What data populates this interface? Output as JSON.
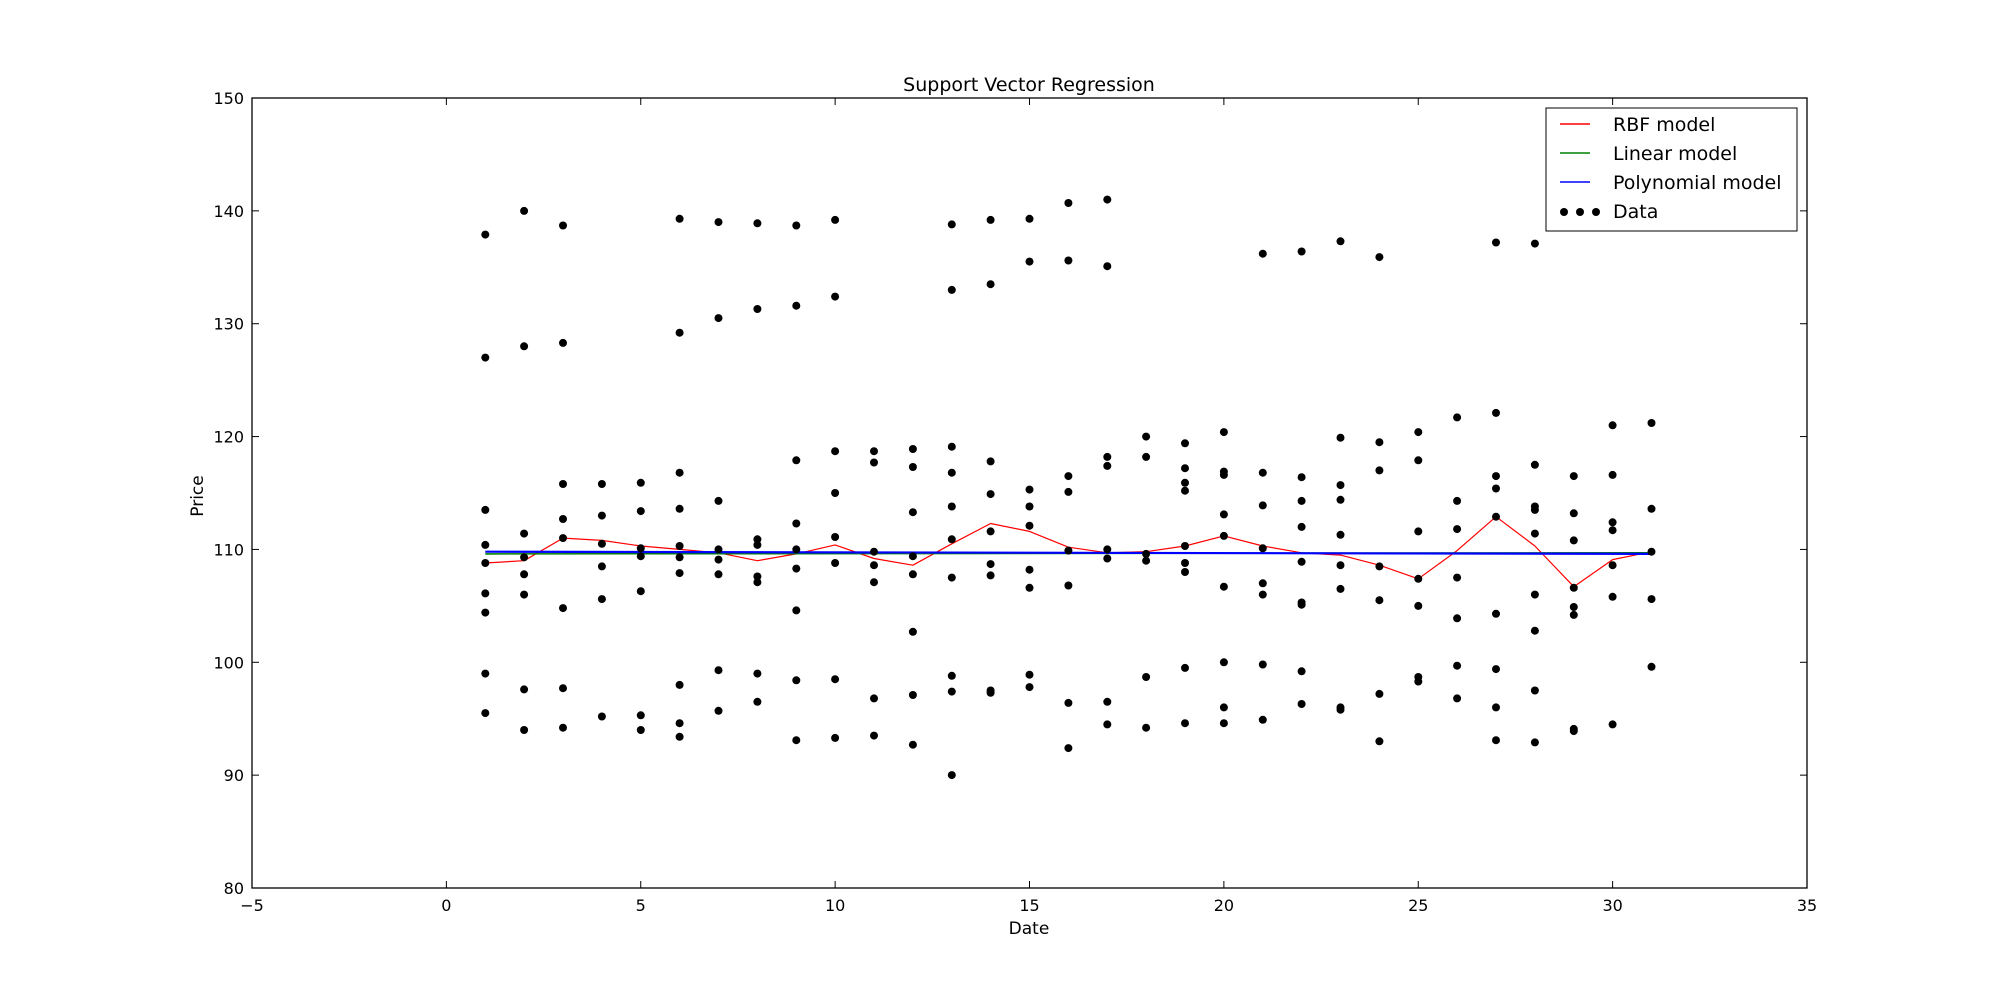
{
  "chart_data": {
    "type": "scatter",
    "title": "Support Vector Regression",
    "xlabel": "Date",
    "ylabel": "Price",
    "xlim": [
      -5,
      35
    ],
    "ylim": [
      80,
      150
    ],
    "xticks": [
      -5,
      0,
      5,
      10,
      15,
      20,
      25,
      30,
      35
    ],
    "yticks": [
      80,
      90,
      100,
      110,
      120,
      130,
      140,
      150
    ],
    "grid": false,
    "legend_position": "top-right",
    "legend": [
      {
        "label": "RBF model",
        "color": "#ff0000",
        "marker": "line"
      },
      {
        "label": "Linear model",
        "color": "#008000",
        "marker": "line"
      },
      {
        "label": "Polynomial model",
        "color": "#0000ff",
        "marker": "line"
      },
      {
        "label": "Data",
        "color": "#000000",
        "marker": "dots"
      }
    ],
    "series": [
      {
        "name": "Data",
        "color": "#000000",
        "points": [
          [
            1,
            137.9
          ],
          [
            1,
            127.0
          ],
          [
            1,
            113.5
          ],
          [
            1,
            110.4
          ],
          [
            1,
            108.8
          ],
          [
            1,
            106.1
          ],
          [
            1,
            104.4
          ],
          [
            1,
            99.0
          ],
          [
            1,
            95.5
          ],
          [
            2,
            140.0
          ],
          [
            2,
            128.0
          ],
          [
            2,
            111.4
          ],
          [
            2,
            109.3
          ],
          [
            2,
            107.8
          ],
          [
            2,
            106.0
          ],
          [
            2,
            97.6
          ],
          [
            2,
            94.0
          ],
          [
            3,
            138.7
          ],
          [
            3,
            128.3
          ],
          [
            3,
            115.8
          ],
          [
            3,
            112.7
          ],
          [
            3,
            111.0
          ],
          [
            3,
            104.8
          ],
          [
            3,
            97.7
          ],
          [
            3,
            94.2
          ],
          [
            4,
            115.8
          ],
          [
            4,
            113.0
          ],
          [
            4,
            110.5
          ],
          [
            4,
            108.5
          ],
          [
            4,
            105.6
          ],
          [
            4,
            95.2
          ],
          [
            5,
            115.9
          ],
          [
            5,
            113.4
          ],
          [
            5,
            110.1
          ],
          [
            5,
            109.4
          ],
          [
            5,
            106.3
          ],
          [
            5,
            95.3
          ],
          [
            5,
            94.0
          ],
          [
            6,
            139.3
          ],
          [
            6,
            129.2
          ],
          [
            6,
            116.8
          ],
          [
            6,
            113.6
          ],
          [
            6,
            110.3
          ],
          [
            6,
            109.3
          ],
          [
            6,
            107.9
          ],
          [
            6,
            98.0
          ],
          [
            6,
            94.6
          ],
          [
            6,
            93.4
          ],
          [
            7,
            139.0
          ],
          [
            7,
            130.5
          ],
          [
            7,
            114.3
          ],
          [
            7,
            110.0
          ],
          [
            7,
            109.1
          ],
          [
            7,
            107.8
          ],
          [
            7,
            99.3
          ],
          [
            7,
            95.7
          ],
          [
            8,
            138.9
          ],
          [
            8,
            131.3
          ],
          [
            8,
            110.9
          ],
          [
            8,
            110.4
          ],
          [
            8,
            107.6
          ],
          [
            8,
            107.1
          ],
          [
            8,
            99.0
          ],
          [
            8,
            96.5
          ],
          [
            9,
            138.7
          ],
          [
            9,
            131.6
          ],
          [
            9,
            117.9
          ],
          [
            9,
            112.3
          ],
          [
            9,
            110.0
          ],
          [
            9,
            108.3
          ],
          [
            9,
            104.6
          ],
          [
            9,
            98.4
          ],
          [
            9,
            93.1
          ],
          [
            10,
            139.2
          ],
          [
            10,
            132.4
          ],
          [
            10,
            118.7
          ],
          [
            10,
            115.0
          ],
          [
            10,
            111.1
          ],
          [
            10,
            108.8
          ],
          [
            10,
            98.5
          ],
          [
            10,
            93.3
          ],
          [
            11,
            118.7
          ],
          [
            11,
            117.7
          ],
          [
            11,
            109.8
          ],
          [
            11,
            108.6
          ],
          [
            11,
            107.1
          ],
          [
            11,
            96.8
          ],
          [
            11,
            93.5
          ],
          [
            12,
            118.9
          ],
          [
            12,
            117.3
          ],
          [
            12,
            113.3
          ],
          [
            12,
            109.4
          ],
          [
            12,
            107.8
          ],
          [
            12,
            102.7
          ],
          [
            12,
            97.1
          ],
          [
            12,
            92.7
          ],
          [
            13,
            138.8
          ],
          [
            13,
            133.0
          ],
          [
            13,
            119.1
          ],
          [
            13,
            116.8
          ],
          [
            13,
            113.8
          ],
          [
            13,
            110.9
          ],
          [
            13,
            107.5
          ],
          [
            13,
            98.8
          ],
          [
            13,
            97.4
          ],
          [
            13,
            90.0
          ],
          [
            14,
            139.2
          ],
          [
            14,
            133.5
          ],
          [
            14,
            117.8
          ],
          [
            14,
            114.9
          ],
          [
            14,
            111.6
          ],
          [
            14,
            108.7
          ],
          [
            14,
            107.7
          ],
          [
            14,
            97.5
          ],
          [
            14,
            97.3
          ],
          [
            15,
            139.3
          ],
          [
            15,
            135.5
          ],
          [
            15,
            115.3
          ],
          [
            15,
            113.8
          ],
          [
            15,
            112.1
          ],
          [
            15,
            108.2
          ],
          [
            15,
            106.6
          ],
          [
            15,
            98.9
          ],
          [
            15,
            97.8
          ],
          [
            16,
            140.7
          ],
          [
            16,
            135.6
          ],
          [
            16,
            116.5
          ],
          [
            16,
            115.1
          ],
          [
            16,
            109.9
          ],
          [
            16,
            106.8
          ],
          [
            16,
            96.4
          ],
          [
            16,
            92.4
          ],
          [
            17,
            141.0
          ],
          [
            17,
            135.1
          ],
          [
            17,
            118.2
          ],
          [
            17,
            117.4
          ],
          [
            17,
            110.0
          ],
          [
            17,
            109.2
          ],
          [
            17,
            96.5
          ],
          [
            17,
            94.5
          ],
          [
            18,
            120.0
          ],
          [
            18,
            118.2
          ],
          [
            18,
            109.6
          ],
          [
            18,
            109.0
          ],
          [
            18,
            98.7
          ],
          [
            18,
            94.2
          ],
          [
            19,
            119.4
          ],
          [
            19,
            117.2
          ],
          [
            19,
            115.9
          ],
          [
            19,
            115.2
          ],
          [
            19,
            110.3
          ],
          [
            19,
            108.8
          ],
          [
            19,
            108.0
          ],
          [
            19,
            99.5
          ],
          [
            19,
            94.6
          ],
          [
            20,
            120.4
          ],
          [
            20,
            116.9
          ],
          [
            20,
            116.6
          ],
          [
            20,
            113.1
          ],
          [
            20,
            111.2
          ],
          [
            20,
            106.7
          ],
          [
            20,
            100.0
          ],
          [
            20,
            96.0
          ],
          [
            20,
            94.6
          ],
          [
            21,
            136.2
          ],
          [
            21,
            116.8
          ],
          [
            21,
            113.9
          ],
          [
            21,
            110.1
          ],
          [
            21,
            107.0
          ],
          [
            21,
            106.0
          ],
          [
            21,
            99.8
          ],
          [
            21,
            94.9
          ],
          [
            22,
            136.4
          ],
          [
            22,
            116.4
          ],
          [
            22,
            114.3
          ],
          [
            22,
            112.0
          ],
          [
            22,
            108.9
          ],
          [
            22,
            105.3
          ],
          [
            22,
            105.1
          ],
          [
            22,
            99.2
          ],
          [
            22,
            96.3
          ],
          [
            23,
            137.3
          ],
          [
            23,
            119.9
          ],
          [
            23,
            115.7
          ],
          [
            23,
            114.4
          ],
          [
            23,
            111.3
          ],
          [
            23,
            108.6
          ],
          [
            23,
            106.5
          ],
          [
            23,
            96.0
          ],
          [
            23,
            95.8
          ],
          [
            24,
            135.9
          ],
          [
            24,
            119.5
          ],
          [
            24,
            117.0
          ],
          [
            24,
            108.5
          ],
          [
            24,
            105.5
          ],
          [
            24,
            97.2
          ],
          [
            24,
            93.0
          ],
          [
            25,
            120.4
          ],
          [
            25,
            117.9
          ],
          [
            25,
            111.6
          ],
          [
            25,
            107.4
          ],
          [
            25,
            105.0
          ],
          [
            25,
            98.7
          ],
          [
            25,
            98.3
          ],
          [
            26,
            121.7
          ],
          [
            26,
            114.3
          ],
          [
            26,
            111.8
          ],
          [
            26,
            107.5
          ],
          [
            26,
            103.9
          ],
          [
            26,
            99.7
          ],
          [
            26,
            96.8
          ],
          [
            27,
            137.2
          ],
          [
            27,
            122.1
          ],
          [
            27,
            116.5
          ],
          [
            27,
            115.4
          ],
          [
            27,
            112.9
          ],
          [
            27,
            104.3
          ],
          [
            27,
            99.4
          ],
          [
            27,
            96.0
          ],
          [
            27,
            93.1
          ],
          [
            28,
            137.1
          ],
          [
            28,
            117.5
          ],
          [
            28,
            113.8
          ],
          [
            28,
            113.5
          ],
          [
            28,
            111.4
          ],
          [
            28,
            106.0
          ],
          [
            28,
            102.8
          ],
          [
            28,
            97.5
          ],
          [
            28,
            92.9
          ],
          [
            29,
            116.5
          ],
          [
            29,
            113.2
          ],
          [
            29,
            110.8
          ],
          [
            29,
            106.6
          ],
          [
            29,
            104.9
          ],
          [
            29,
            104.2
          ],
          [
            29,
            94.1
          ],
          [
            29,
            93.9
          ],
          [
            30,
            121.0
          ],
          [
            30,
            116.6
          ],
          [
            30,
            112.4
          ],
          [
            30,
            111.7
          ],
          [
            30,
            108.6
          ],
          [
            30,
            105.8
          ],
          [
            30,
            94.5
          ],
          [
            31,
            121.2
          ],
          [
            31,
            113.6
          ],
          [
            31,
            109.8
          ],
          [
            31,
            105.6
          ],
          [
            31,
            99.6
          ]
        ]
      },
      {
        "name": "RBF model",
        "color": "#ff0000",
        "points": [
          [
            1,
            108.8
          ],
          [
            2,
            109.0
          ],
          [
            3,
            111.0
          ],
          [
            4,
            110.8
          ],
          [
            5,
            110.3
          ],
          [
            6,
            110.0
          ],
          [
            7,
            109.7
          ],
          [
            8,
            109.0
          ],
          [
            9,
            109.6
          ],
          [
            10,
            110.4
          ],
          [
            11,
            109.2
          ],
          [
            12,
            108.6
          ],
          [
            13,
            110.5
          ],
          [
            14,
            112.3
          ],
          [
            15,
            111.6
          ],
          [
            16,
            110.2
          ],
          [
            17,
            109.7
          ],
          [
            18,
            109.8
          ],
          [
            19,
            110.3
          ],
          [
            20,
            111.2
          ],
          [
            21,
            110.3
          ],
          [
            22,
            109.7
          ],
          [
            23,
            109.5
          ],
          [
            24,
            108.6
          ],
          [
            25,
            107.4
          ],
          [
            26,
            109.9
          ],
          [
            27,
            112.9
          ],
          [
            28,
            110.3
          ],
          [
            29,
            106.7
          ],
          [
            30,
            109.1
          ],
          [
            31,
            109.8
          ]
        ]
      },
      {
        "name": "Linear model",
        "color": "#008000",
        "points": [
          [
            1,
            109.6
          ],
          [
            31,
            109.7
          ]
        ]
      },
      {
        "name": "Polynomial model",
        "color": "#0000ff",
        "points": [
          [
            1,
            109.8
          ],
          [
            31,
            109.6
          ]
        ]
      }
    ]
  }
}
